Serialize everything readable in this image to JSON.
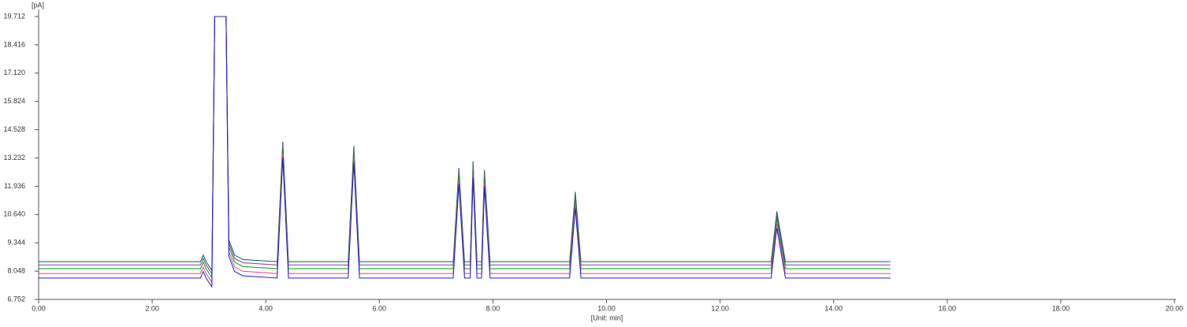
{
  "chart_data": {
    "type": "line",
    "y_label": "[pA]",
    "x_label": "[Unit: min]",
    "xlim": [
      0,
      20
    ],
    "ylim": [
      6.752,
      19.712
    ],
    "xticks": [
      {
        "value": 0,
        "label": "0.00"
      },
      {
        "value": 2,
        "label": "2.00"
      },
      {
        "value": 4,
        "label": "4.00"
      },
      {
        "value": 6,
        "label": "6.00"
      },
      {
        "value": 8,
        "label": "8.00"
      },
      {
        "value": 10,
        "label": "10.00"
      },
      {
        "value": 12,
        "label": "12.00"
      },
      {
        "value": 14,
        "label": "14.00"
      },
      {
        "value": 16,
        "label": "16.00"
      },
      {
        "value": 18,
        "label": "18.00"
      },
      {
        "value": 20,
        "label": "20.00"
      }
    ],
    "yticks": [
      6.752,
      8.048,
      9.344,
      {
        "value": 10.64,
        "label": "10.640"
      },
      11.936,
      13.232,
      14.528,
      15.824,
      {
        "value": 17.12,
        "label": "17.120"
      },
      18.416,
      19.712
    ],
    "x": [
      0,
      2.85,
      2.9,
      2.95,
      3.05,
      3.1,
      3.3,
      3.35,
      3.45,
      3.6,
      4.2,
      4.3,
      4.4,
      5.45,
      5.55,
      5.65,
      7.3,
      7.4,
      7.5,
      7.6,
      7.65,
      7.72,
      7.8,
      7.85,
      7.95,
      9.35,
      9.45,
      9.55,
      12.9,
      13.0,
      13.15,
      15.0
    ],
    "series": [
      {
        "color": "#006060",
        "values": [
          8.48,
          8.48,
          8.78,
          8.48,
          8.08,
          19.712,
          19.712,
          9.48,
          8.78,
          8.58,
          8.48,
          13.98,
          8.48,
          8.48,
          13.78,
          8.48,
          8.48,
          12.78,
          8.48,
          8.48,
          13.08,
          8.48,
          8.48,
          12.68,
          8.48,
          8.48,
          11.68,
          8.48,
          8.48,
          10.78,
          8.48,
          8.48
        ]
      },
      {
        "color": "#8040a0",
        "values": [
          8.33,
          8.33,
          8.63,
          8.33,
          7.93,
          19.712,
          19.712,
          9.33,
          8.63,
          8.43,
          8.33,
          13.83,
          8.33,
          8.33,
          13.63,
          8.33,
          8.33,
          12.63,
          8.33,
          8.33,
          12.93,
          8.33,
          8.33,
          12.53,
          8.33,
          8.33,
          11.53,
          8.33,
          8.33,
          10.63,
          8.33,
          8.33
        ]
      },
      {
        "color": "#00a000",
        "values": [
          8.16,
          8.16,
          8.46,
          8.16,
          7.76,
          19.712,
          19.712,
          9.16,
          8.46,
          8.26,
          8.16,
          13.66,
          8.16,
          8.16,
          13.46,
          8.16,
          8.16,
          12.46,
          8.16,
          8.16,
          12.76,
          8.16,
          8.16,
          12.36,
          8.16,
          8.16,
          11.36,
          8.16,
          8.16,
          10.46,
          8.16,
          8.16
        ]
      },
      {
        "color": "#e040a0",
        "values": [
          7.94,
          7.94,
          8.24,
          7.94,
          7.54,
          19.712,
          19.712,
          8.94,
          8.24,
          8.04,
          7.94,
          13.44,
          7.94,
          7.94,
          13.24,
          7.94,
          7.94,
          12.24,
          7.94,
          7.94,
          12.54,
          7.94,
          7.94,
          12.14,
          7.94,
          7.94,
          11.14,
          7.94,
          7.94,
          10.24,
          7.94,
          7.94
        ]
      },
      {
        "color": "#2020c0",
        "values": [
          7.73,
          7.73,
          8.03,
          7.73,
          7.33,
          19.712,
          19.712,
          8.73,
          8.03,
          7.83,
          7.73,
          13.23,
          7.73,
          7.73,
          13.03,
          7.73,
          7.73,
          12.03,
          7.73,
          7.73,
          12.33,
          7.73,
          7.73,
          11.93,
          7.73,
          7.73,
          10.93,
          7.73,
          7.73,
          10.03,
          7.73,
          7.73
        ]
      }
    ]
  }
}
